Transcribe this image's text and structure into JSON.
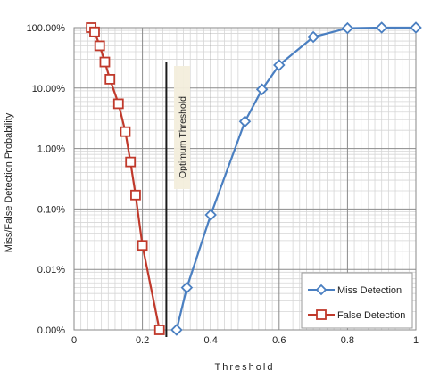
{
  "chart_data": {
    "type": "line",
    "xlabel": "Threshold",
    "ylabel": "Miss/False Detection Probability",
    "xlim": [
      0,
      1
    ],
    "x_ticks": [
      0,
      0.2,
      0.4,
      0.6,
      0.8,
      1
    ],
    "x_tick_labels": [
      "0",
      "0.2",
      "0.4",
      "0.6",
      "0.8",
      "1"
    ],
    "y_scale": "log",
    "y_ticks": [
      0.0,
      0.0001,
      0.001,
      0.01,
      0.1,
      1
    ],
    "y_tick_labels": [
      "0.00%",
      "0.01%",
      "0.10%",
      "1.00%",
      "10.00%",
      "100.00%"
    ],
    "grid": true,
    "legend_position": "bottom-right",
    "annotation": {
      "text": "Optimum Threshold",
      "x": 0.27
    },
    "series": [
      {
        "name": "Miss Detection",
        "color": "#4a7fc1",
        "marker": "diamond",
        "points": [
          [
            0.3,
            0.0
          ],
          [
            0.33,
            5e-05
          ],
          [
            0.4,
            0.0008
          ],
          [
            0.5,
            0.028
          ],
          [
            0.55,
            0.095
          ],
          [
            0.6,
            0.24
          ],
          [
            0.7,
            0.7
          ],
          [
            0.8,
            0.98
          ],
          [
            0.9,
            1.0
          ],
          [
            1.0,
            1.0
          ]
        ]
      },
      {
        "name": "False Detection",
        "color": "#c0392b",
        "marker": "square",
        "points": [
          [
            0.05,
            1.0
          ],
          [
            0.06,
            0.85
          ],
          [
            0.075,
            0.5
          ],
          [
            0.09,
            0.27
          ],
          [
            0.105,
            0.14
          ],
          [
            0.13,
            0.055
          ],
          [
            0.15,
            0.019
          ],
          [
            0.165,
            0.006
          ],
          [
            0.18,
            0.0017
          ],
          [
            0.2,
            0.00025
          ],
          [
            0.25,
            0.0
          ]
        ]
      }
    ]
  }
}
